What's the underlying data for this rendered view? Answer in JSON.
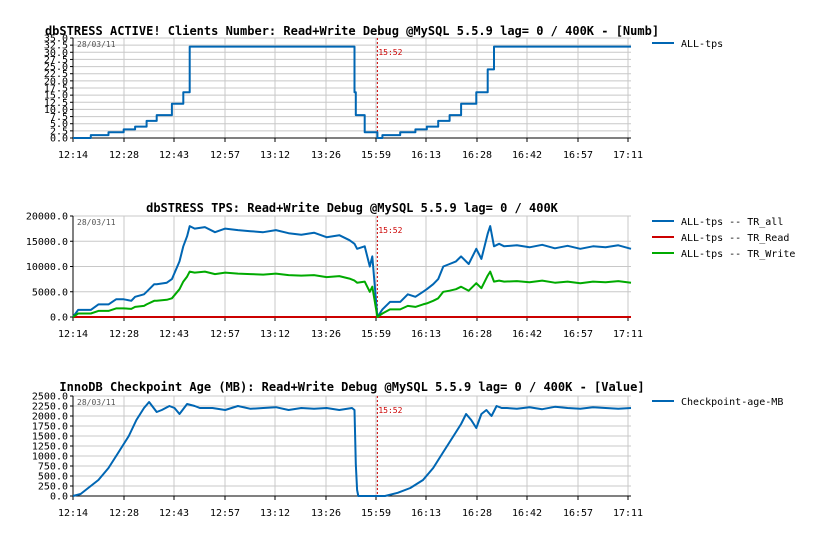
{
  "chart_data": [
    {
      "type": "line",
      "title": "dbSTRESS ACTIVE! Clients Number: Read+Write Debug @MySQL 5.5.9 lag= 0 / 400K - [Numb]",
      "date_label": "28/03/11",
      "marker_label": "15:52",
      "marker_x": 12.0,
      "x_tick_labels": [
        "12:14",
        "12:28",
        "12:43",
        "12:57",
        "13:12",
        "13:26",
        "15:59",
        "16:13",
        "16:28",
        "16:42",
        "16:57",
        "17:11"
      ],
      "xlim": [
        0,
        22
      ],
      "ylim": [
        0,
        35
      ],
      "y_ticks": [
        "0.0",
        "2.5",
        "5.0",
        "7.5",
        "10.0",
        "12.5",
        "15.0",
        "17.5",
        "20.0",
        "22.5",
        "25.0",
        "27.5",
        "30.0",
        "32.5",
        "35.0"
      ],
      "grid": true,
      "legend_position": "right",
      "series": [
        {
          "name": "ALL-tps",
          "color": "#0066b3",
          "x": [
            0,
            0.7,
            0.7,
            1.4,
            1.4,
            2.0,
            2.0,
            2.45,
            2.45,
            2.9,
            2.9,
            3.3,
            3.3,
            3.9,
            3.9,
            4.35,
            4.35,
            4.6,
            4.6,
            6,
            8,
            10,
            11.1,
            11.1,
            11.15,
            11.15,
            11.5,
            11.5,
            12.0,
            12.0,
            12.2,
            12.2,
            12.9,
            12.9,
            13.5,
            13.5,
            13.95,
            13.95,
            14.4,
            14.4,
            14.85,
            14.85,
            15.3,
            15.3,
            15.9,
            15.9,
            16.35,
            16.35,
            16.6,
            16.6,
            18,
            20,
            22
          ],
          "y": [
            0,
            0,
            1,
            1,
            2,
            2,
            3,
            3,
            4,
            4,
            6,
            6,
            8,
            8,
            12,
            12,
            16,
            16,
            32,
            32,
            32,
            32,
            32,
            16,
            16,
            8,
            8,
            2,
            2,
            0,
            0,
            1,
            1,
            2,
            2,
            3,
            3,
            4,
            4,
            6,
            6,
            8,
            8,
            12,
            12,
            16,
            16,
            24,
            24,
            32,
            32,
            32,
            32
          ]
        }
      ]
    },
    {
      "type": "line",
      "title": "dbSTRESS TPS: Read+Write Debug @MySQL 5.5.9 lag= 0 / 400K",
      "date_label": "28/03/11",
      "marker_label": "15:52",
      "marker_x": 12.0,
      "x_tick_labels": [
        "12:14",
        "12:28",
        "12:43",
        "12:57",
        "13:12",
        "13:26",
        "15:59",
        "16:13",
        "16:28",
        "16:42",
        "16:57",
        "17:11"
      ],
      "xlim": [
        0,
        22
      ],
      "ylim": [
        0,
        20000
      ],
      "y_ticks": [
        "0.0",
        "5000.0",
        "10000.0",
        "15000.0",
        "20000.0"
      ],
      "grid": true,
      "legend_position": "right",
      "series": [
        {
          "name": "ALL-tps -- TR_all",
          "color": "#0066b3",
          "x": [
            0,
            0.2,
            0.7,
            1.0,
            1.4,
            1.7,
            2.0,
            2.3,
            2.45,
            2.8,
            2.9,
            3.2,
            3.3,
            3.7,
            3.9,
            4.2,
            4.35,
            4.5,
            4.6,
            4.8,
            5.2,
            5.6,
            6.0,
            6.5,
            7.0,
            7.5,
            8.0,
            8.5,
            9.0,
            9.5,
            10.0,
            10.5,
            10.9,
            11.1,
            11.2,
            11.5,
            11.7,
            11.8,
            12.0,
            12.2,
            12.5,
            12.9,
            13.2,
            13.5,
            13.8,
            13.95,
            14.2,
            14.4,
            14.6,
            14.85,
            15.1,
            15.3,
            15.6,
            15.9,
            16.1,
            16.35,
            16.45,
            16.6,
            16.8,
            17.0,
            17.5,
            18.0,
            18.5,
            19.0,
            19.5,
            20.0,
            20.5,
            21.0,
            21.5,
            22.0
          ],
          "y": [
            0,
            1400,
            1400,
            2500,
            2500,
            3500,
            3500,
            3200,
            4000,
            4500,
            5000,
            6500,
            6500,
            6800,
            7500,
            11000,
            14000,
            16000,
            18000,
            17500,
            17800,
            16800,
            17500,
            17200,
            17000,
            16800,
            17200,
            16600,
            16300,
            16700,
            15800,
            16200,
            15200,
            14500,
            13500,
            14000,
            10000,
            12000,
            0,
            1500,
            3000,
            3000,
            4500,
            4000,
            5000,
            5500,
            6500,
            7500,
            10000,
            10500,
            11000,
            12000,
            10500,
            13500,
            11500,
            16500,
            18000,
            14000,
            14500,
            14000,
            14200,
            13800,
            14300,
            13600,
            14100,
            13500,
            14000,
            13800,
            14200,
            13500
          ]
        },
        {
          "name": "ALL-tps -- TR_Read",
          "color": "#cc0000",
          "x": [
            0,
            22
          ],
          "y": [
            0,
            0
          ]
        },
        {
          "name": "ALL-tps -- TR_Write",
          "color": "#00aa00",
          "x": [
            0,
            0.2,
            0.7,
            1.0,
            1.4,
            1.7,
            2.0,
            2.3,
            2.45,
            2.8,
            2.9,
            3.2,
            3.3,
            3.7,
            3.9,
            4.2,
            4.35,
            4.5,
            4.6,
            4.8,
            5.2,
            5.6,
            6.0,
            6.5,
            7.0,
            7.5,
            8.0,
            8.5,
            9.0,
            9.5,
            10.0,
            10.5,
            10.9,
            11.1,
            11.2,
            11.5,
            11.7,
            11.8,
            12.0,
            12.2,
            12.5,
            12.9,
            13.2,
            13.5,
            13.8,
            13.95,
            14.2,
            14.4,
            14.6,
            14.85,
            15.1,
            15.3,
            15.6,
            15.9,
            16.1,
            16.35,
            16.45,
            16.6,
            16.8,
            17.0,
            17.5,
            18.0,
            18.5,
            19.0,
            19.5,
            20.0,
            20.5,
            21.0,
            21.5,
            22.0
          ],
          "y": [
            0,
            700,
            700,
            1200,
            1200,
            1700,
            1700,
            1600,
            2000,
            2200,
            2500,
            3200,
            3200,
            3400,
            3700,
            5500,
            7000,
            8000,
            9000,
            8800,
            9000,
            8500,
            8800,
            8600,
            8500,
            8400,
            8600,
            8300,
            8200,
            8300,
            7900,
            8100,
            7600,
            7200,
            6800,
            7000,
            5000,
            6000,
            0,
            700,
            1500,
            1500,
            2200,
            2000,
            2500,
            2700,
            3200,
            3700,
            5000,
            5200,
            5500,
            6000,
            5200,
            6700,
            5700,
            8200,
            9000,
            7000,
            7200,
            7000,
            7100,
            6900,
            7200,
            6800,
            7000,
            6700,
            7000,
            6900,
            7100,
            6800
          ]
        }
      ]
    },
    {
      "type": "line",
      "title": "InnoDB Checkpoint Age (MB): Read+Write Debug @MySQL 5.5.9 lag= 0 / 400K - [Value]",
      "date_label": "28/03/11",
      "marker_label": "15:52",
      "marker_x": 12.0,
      "x_tick_labels": [
        "12:14",
        "12:28",
        "12:43",
        "12:57",
        "13:12",
        "13:26",
        "15:59",
        "16:13",
        "16:28",
        "16:42",
        "16:57",
        "17:11"
      ],
      "xlim": [
        0,
        22
      ],
      "ylim": [
        0,
        2500
      ],
      "y_ticks": [
        "0.0",
        "250.0",
        "500.0",
        "750.0",
        "1000.0",
        "1250.0",
        "1500.0",
        "1750.0",
        "2000.0",
        "2250.0",
        "2500.0"
      ],
      "grid": true,
      "legend_position": "right",
      "series": [
        {
          "name": "Checkpoint-age-MB",
          "color": "#0066b3",
          "x": [
            0,
            0.3,
            0.6,
            1.0,
            1.4,
            1.8,
            2.2,
            2.5,
            2.8,
            3.0,
            3.3,
            3.5,
            3.8,
            4.0,
            4.2,
            4.5,
            4.8,
            5.0,
            5.5,
            6.0,
            6.5,
            7.0,
            7.5,
            8.0,
            8.5,
            9.0,
            9.5,
            10.0,
            10.5,
            11.0,
            11.1,
            11.15,
            11.2,
            11.25,
            11.5,
            12.0,
            12.3,
            12.8,
            13.3,
            13.8,
            14.2,
            14.6,
            15.0,
            15.3,
            15.5,
            15.7,
            15.9,
            16.1,
            16.3,
            16.5,
            16.7,
            16.9,
            17.1,
            17.5,
            18.0,
            18.5,
            19.0,
            19.5,
            20.0,
            20.5,
            21.0,
            21.5,
            22.0
          ],
          "y": [
            0,
            50,
            200,
            400,
            700,
            1100,
            1500,
            1900,
            2200,
            2350,
            2100,
            2150,
            2250,
            2200,
            2050,
            2300,
            2250,
            2200,
            2200,
            2150,
            2250,
            2180,
            2200,
            2220,
            2150,
            2200,
            2180,
            2200,
            2150,
            2200,
            2150,
            800,
            150,
            0,
            0,
            0,
            0,
            80,
            200,
            400,
            700,
            1100,
            1500,
            1800,
            2050,
            1900,
            1700,
            2050,
            2150,
            2000,
            2250,
            2200,
            2200,
            2180,
            2220,
            2170,
            2230,
            2200,
            2180,
            2220,
            2200,
            2180,
            2200
          ]
        }
      ]
    }
  ]
}
